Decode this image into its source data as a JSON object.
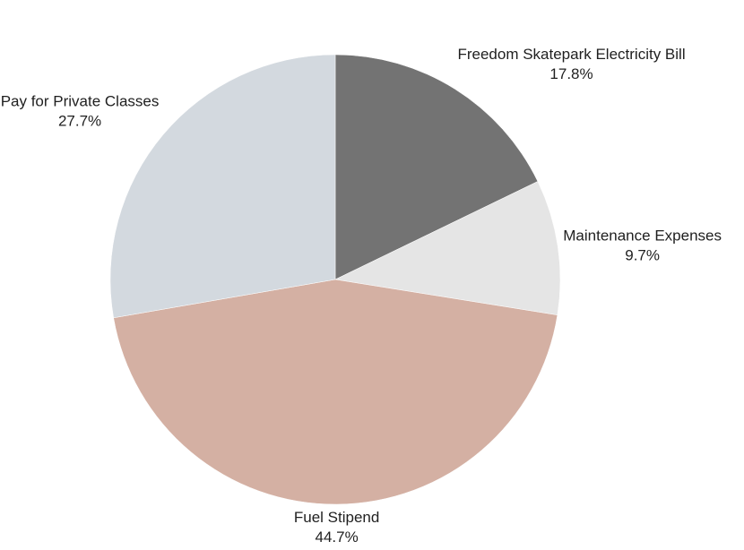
{
  "chart_data": {
    "type": "pie",
    "start_angle_deg": 0,
    "direction": "clockwise",
    "slices": [
      {
        "label": "Freedom Skatepark Electricity Bill",
        "value": 17.8,
        "value_label": "17.8%",
        "color": "#737373"
      },
      {
        "label": "Maintenance Expenses",
        "value": 9.7,
        "value_label": "9.7%",
        "color": "#e5e5e5"
      },
      {
        "label": "Fuel Stipend",
        "value": 44.7,
        "value_label": "44.7%",
        "color": "#d4b0a3"
      },
      {
        "label": "Pay for Private Classes",
        "value": 27.7,
        "value_label": "27.7%",
        "color": "#d3d9df"
      }
    ],
    "legend": "none"
  }
}
